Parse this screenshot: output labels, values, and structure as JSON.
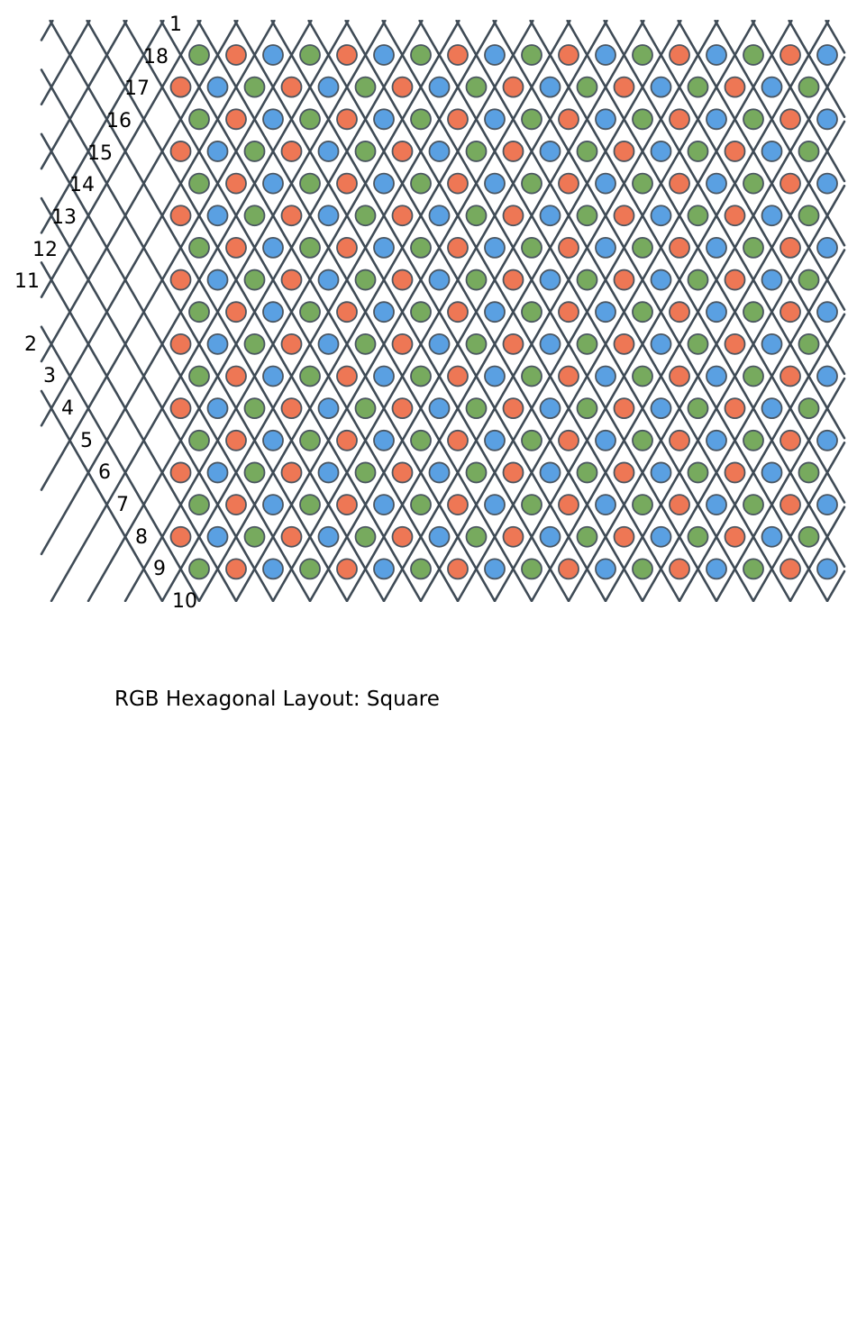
{
  "title": "RGB Hexagonal Layout: Square",
  "colors": {
    "red": "#ee7755",
    "green": "#77aa5e",
    "blue": "#5aa0e2",
    "outline": "#4a5560",
    "line": "#3f4b56"
  },
  "grid": {
    "rows": 17,
    "even_row_nodes": 18,
    "odd_row_nodes": 18,
    "even_row_color_cycle": [
      "green",
      "red",
      "blue"
    ],
    "odd_row_color_cycle": [
      "red",
      "blue",
      "green"
    ]
  },
  "line_labels": {
    "descending": [
      "1",
      "18",
      "17",
      "16",
      "15",
      "14",
      "13",
      "12",
      "11"
    ],
    "ascending": [
      "2",
      "3",
      "4",
      "5",
      "6",
      "7",
      "8",
      "9",
      "10"
    ]
  }
}
